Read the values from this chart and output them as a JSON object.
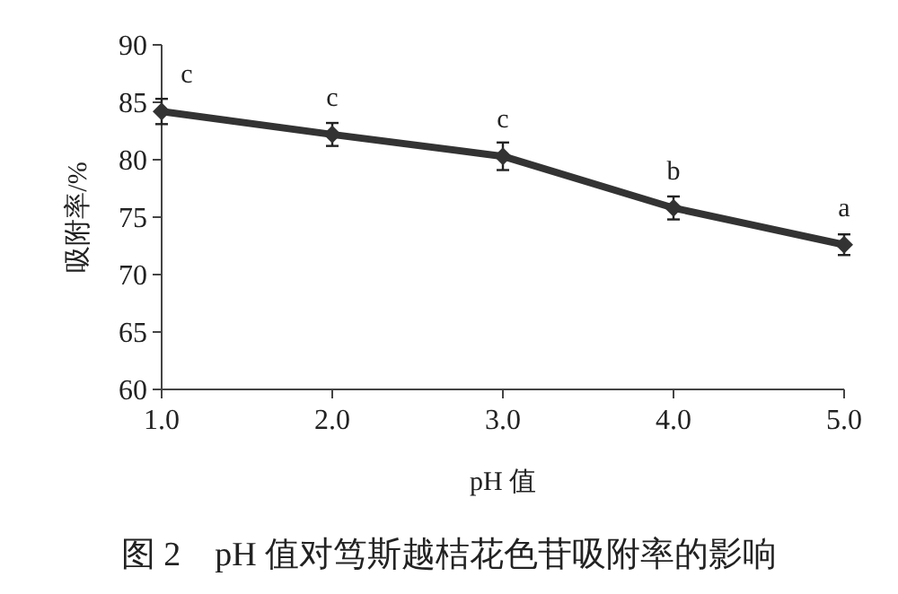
{
  "chart_data": {
    "type": "line",
    "xlabel": "pH 值",
    "ylabel": "吸附率/%",
    "x": [
      1,
      2,
      3,
      4,
      5
    ],
    "series": [
      {
        "color": "#333333",
        "values": [
          84.2,
          82.2,
          80.3,
          75.8,
          72.6
        ],
        "errors": [
          1.1,
          1.0,
          1.2,
          1.0,
          0.9
        ]
      }
    ],
    "xlim": [
      1,
      5
    ],
    "xticks": [
      {
        "value": 1,
        "label": "1.0"
      },
      {
        "value": 2,
        "label": "2.0"
      },
      {
        "value": 3,
        "label": "3.0"
      },
      {
        "value": 4,
        "label": "4.0"
      },
      {
        "value": 5,
        "label": "5.0"
      }
    ],
    "ylim": [
      60,
      90
    ],
    "yticks": [
      60,
      65,
      70,
      75,
      80,
      85,
      90
    ],
    "grid": false,
    "marker": "diamond",
    "line_style": "solid",
    "annotations": [
      {
        "text": "c",
        "x": 1,
        "y": 84.2
      },
      {
        "text": "c",
        "x": 2,
        "y": 82.2
      },
      {
        "text": "c",
        "x": 3,
        "y": 80.3
      },
      {
        "text": "b",
        "x": 4,
        "y": 75.8
      },
      {
        "text": "a",
        "x": 5,
        "y": 72.6
      },
      "图 2　pH 值对笃斯越桔花色苷吸附率的影响"
    ]
  }
}
